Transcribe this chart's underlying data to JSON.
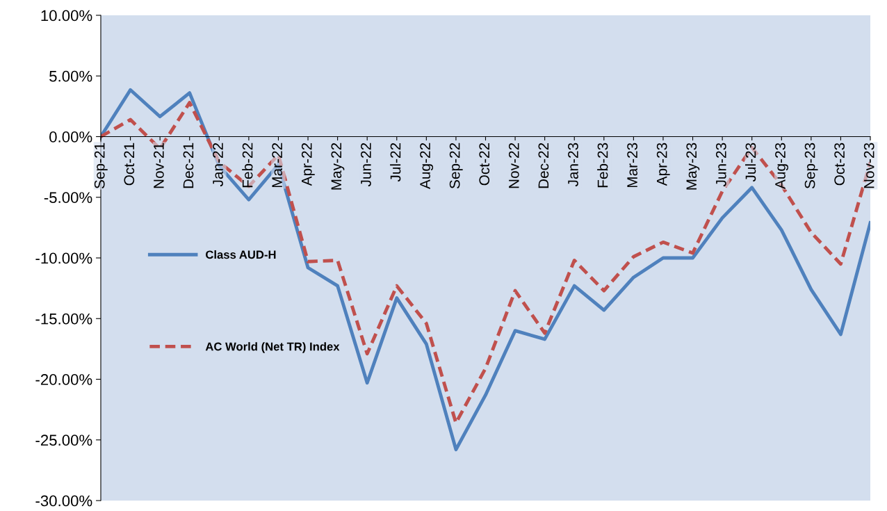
{
  "chart_data": {
    "type": "line",
    "categories": [
      "Sep-21",
      "Oct-21",
      "Nov-21",
      "Dec-21",
      "Jan-22",
      "Feb-22",
      "Mar-22",
      "Apr-22",
      "May-22",
      "Jun-22",
      "Jul-22",
      "Aug-22",
      "Sep-22",
      "Oct-22",
      "Nov-22",
      "Dec-22",
      "Jan-23",
      "Feb-23",
      "Mar-23",
      "Apr-23",
      "May-23",
      "Jun-23",
      "Jul-23",
      "Aug-23",
      "Sep-23",
      "Oct-23",
      "Nov-23"
    ],
    "series": [
      {
        "name": "Class AUD-H",
        "color": "#4f81bd",
        "line_style": "solid",
        "values": [
          0,
          3.85,
          1.65,
          3.6,
          -2.4,
          -5.2,
          -2.3,
          -10.8,
          -12.3,
          -20.3,
          -13.3,
          -17.1,
          -25.8,
          -21.3,
          -16.0,
          -16.7,
          -12.3,
          -14.3,
          -11.6,
          -10.0,
          -10.0,
          -6.7,
          -4.2,
          -7.7,
          -12.6,
          -16.3,
          -7.1
        ]
      },
      {
        "name": "AC World (Net TR) Index",
        "color": "#c0504d",
        "line_style": "dashed",
        "values": [
          0,
          1.4,
          -1.0,
          2.8,
          -2.1,
          -4.1,
          -1.5,
          -10.3,
          -10.2,
          -17.9,
          -12.3,
          -15.4,
          -23.6,
          -19.1,
          -12.7,
          -16.2,
          -10.2,
          -12.7,
          -9.9,
          -8.7,
          -9.6,
          -4.5,
          -0.9,
          -4.0,
          -7.9,
          -10.5,
          -2.1
        ]
      }
    ],
    "ylim": [
      -30,
      10
    ],
    "yticks": [
      {
        "value": 10,
        "label": "10.00%"
      },
      {
        "value": 5,
        "label": "5.00%"
      },
      {
        "value": 0,
        "label": "0.00%"
      },
      {
        "value": -5,
        "label": "-5.00%"
      },
      {
        "value": -10,
        "label": "-10.00%"
      },
      {
        "value": -15,
        "label": "-15.00%"
      },
      {
        "value": -20,
        "label": "-20.00%"
      },
      {
        "value": -25,
        "label": "-25.00%"
      },
      {
        "value": -30,
        "label": "-30.00%"
      }
    ],
    "grid": false,
    "legend": "left",
    "marker": "none"
  }
}
